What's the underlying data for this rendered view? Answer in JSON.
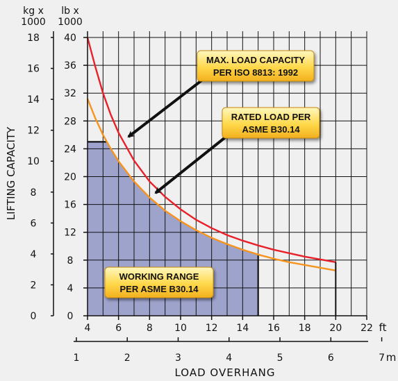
{
  "chart_data": {
    "type": "line",
    "left_axis_unit": [
      "kg x",
      "1000"
    ],
    "right_axis_unit": [
      "lb x",
      "1000"
    ],
    "ylabel": "LIFTING CAPACITY",
    "xlabel": "LOAD OVERHANG",
    "kg_ticks": [
      "0",
      "2",
      "4",
      "6",
      "8",
      "10",
      "12",
      "14",
      "16",
      "18"
    ],
    "lb_ticks": [
      "0",
      "4",
      "8",
      "12",
      "16",
      "20",
      "24",
      "28",
      "32",
      "36",
      "40"
    ],
    "ft_ticks": [
      "4",
      "6",
      "8",
      "10",
      "12",
      "14",
      "16",
      "18",
      "20",
      "22"
    ],
    "ft_unit": "ft",
    "m_ticks": [
      "1",
      "2",
      "3",
      "4",
      "5",
      "6",
      "7"
    ],
    "m_unit": "m",
    "xlim_ft": [
      4,
      22
    ],
    "ylim_lb": [
      0,
      40
    ],
    "grid": true,
    "series": [
      {
        "name": "MAX. LOAD CAPACITY PER ISO 8813: 1992",
        "color": "#e8202a",
        "x_ft": [
          4.0,
          4.5,
          5.0,
          5.5,
          6.0,
          7.0,
          8.0,
          9.0,
          10.0,
          11.0,
          12.0,
          13.0,
          14.0,
          15.0,
          16.0,
          17.0,
          18.0,
          19.0,
          20.0
        ],
        "y_lb": [
          40.0,
          35.8,
          32.0,
          28.9,
          26.3,
          22.3,
          19.3,
          17.1,
          15.3,
          13.8,
          12.6,
          11.6,
          10.8,
          10.1,
          9.5,
          9.0,
          8.5,
          8.1,
          7.7
        ]
      },
      {
        "name": "RATED LOAD PER ASME B30.14",
        "color": "#f7941d",
        "x_ft": [
          4.0,
          4.5,
          5.0,
          5.5,
          6.0,
          7.0,
          8.0,
          9.0,
          10.0,
          11.0,
          12.0,
          13.0,
          14.0,
          15.0,
          16.0,
          17.0,
          18.0,
          19.0,
          20.0
        ],
        "y_lb": [
          31.2,
          28.4,
          26.0,
          24.0,
          22.2,
          19.3,
          17.0,
          15.1,
          13.6,
          12.3,
          11.2,
          10.3,
          9.5,
          8.8,
          8.2,
          7.7,
          7.3,
          6.9,
          6.5
        ]
      }
    ],
    "working_range": {
      "name": "WORKING RANGE PER ASME B30.14",
      "color": "#9ea3cc",
      "cap_lb": 25,
      "end_ft": 15.0
    },
    "annotations": [
      {
        "lines": [
          "MAX. LOAD CAPACITY",
          "PER ISO 8813: 1992"
        ]
      },
      {
        "lines": [
          "RATED LOAD PER",
          "ASME B30.14"
        ]
      },
      {
        "lines": [
          "WORKING RANGE",
          "PER ASME B30.14"
        ]
      }
    ]
  }
}
